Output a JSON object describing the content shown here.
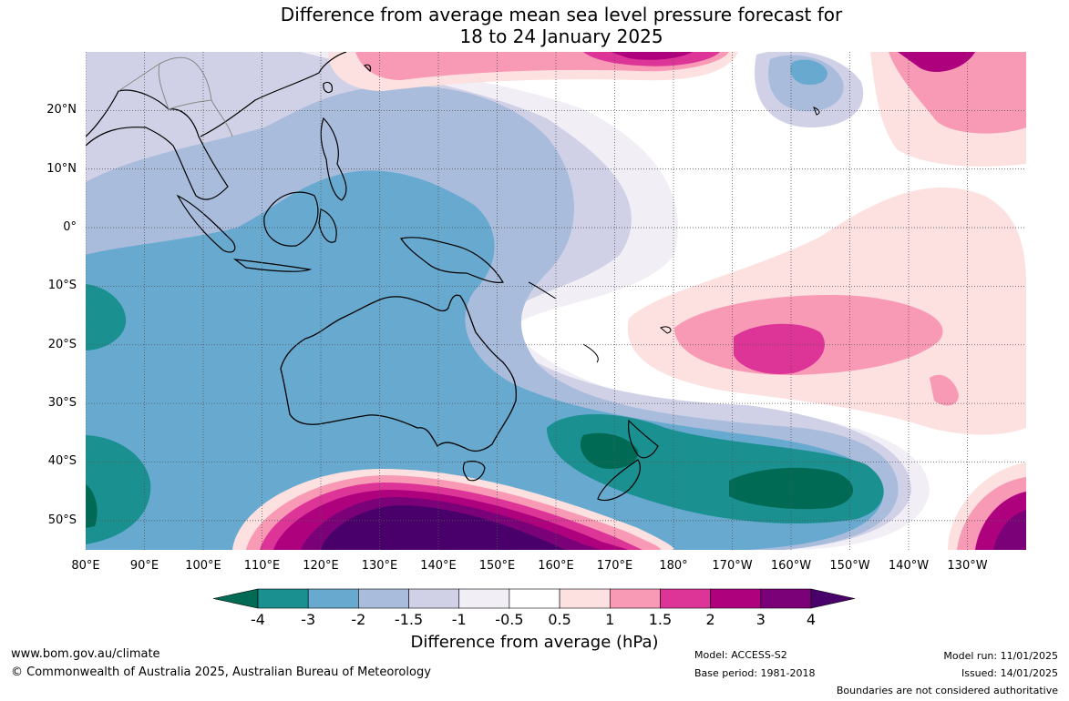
{
  "title": {
    "line1": "Difference from average mean sea level pressure forecast for",
    "line2": "18 to 24 January 2025"
  },
  "map": {
    "lat_labels": [
      "20°N",
      "10°N",
      "0°",
      "10°S",
      "20°S",
      "30°S",
      "40°S",
      "50°S"
    ],
    "lon_labels": [
      "80°E",
      "90°E",
      "100°E",
      "110°E",
      "120°E",
      "130°E",
      "140°E",
      "150°E",
      "160°E",
      "170°E",
      "180°",
      "170°W",
      "160°W",
      "150°W",
      "140°W",
      "130°W"
    ],
    "extent": {
      "lon": [
        80,
        240
      ],
      "lat": [
        -55,
        30
      ]
    }
  },
  "colorbar": {
    "ticks": [
      "-4",
      "-3",
      "-2",
      "-1.5",
      "-1",
      "-0.5",
      "0.5",
      "1",
      "1.5",
      "2",
      "3",
      "4"
    ],
    "colors": [
      "#006a55",
      "#1a9090",
      "#67a9cf",
      "#a9bcdc",
      "#d0d1e6",
      "#f1eef6",
      "#ffffff",
      "#fde0e0",
      "#f89ab6",
      "#dd3497",
      "#ae017e",
      "#7a0177",
      "#49006a"
    ],
    "label": "Difference from average (hPa)"
  },
  "footer": {
    "website": "www.bom.gov.au/climate",
    "copyright": "© Commonwealth of Australia 2025, Australian Bureau of Meteorology",
    "model": "Model: ACCESS-S2",
    "base_period": "Base period: 1981-2018",
    "model_run": "Model run: 11/01/2025",
    "issued": "Issued: 14/01/2025",
    "boundaries": "Boundaries are not considered authoritative"
  }
}
